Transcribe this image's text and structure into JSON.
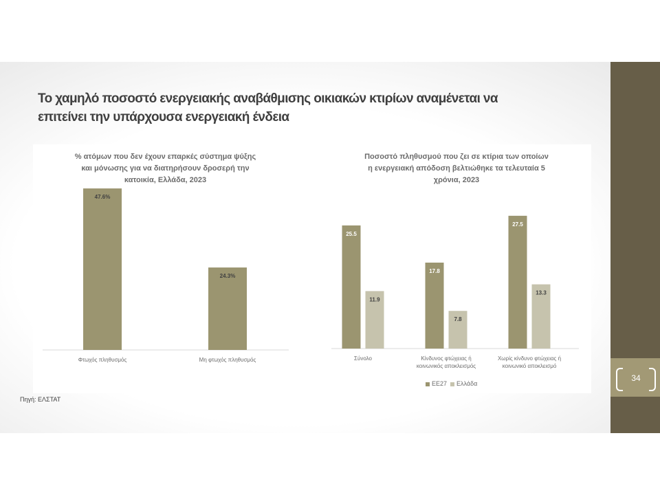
{
  "slide": {
    "title_line1": "Το χαμηλό ποσοστό ενεργειακής αναβάθμισης οικιακών κτιρίων αναμένεται να",
    "title_line2": "επιτείνει την υπάρχουσα ενεργειακή ένδεια",
    "source": "Πηγή: ΕΛΣΤΑΤ",
    "page_number": "34"
  },
  "colors": {
    "bar_main": "#9b9570",
    "bar_light": "#c6c3ad",
    "band": "#675e48",
    "page_box": "#a29975"
  },
  "chart_data": [
    {
      "type": "bar",
      "title_lines": [
        "% ατόμων που δεν έχουν επαρκές σύστημα ψύξης",
        "και μόνωσης για να διατηρήσουν δροσερή την",
        "κατοικία, Ελλάδα, 2023"
      ],
      "categories": [
        "Φτωχός πληθυσμός",
        "Μη φτωχός πληθυσμός"
      ],
      "values": [
        47.6,
        24.3
      ],
      "value_labels": [
        "47.6%",
        "24.3%"
      ],
      "ylim": [
        0,
        50
      ],
      "grid": false,
      "legend": "none"
    },
    {
      "type": "bar",
      "title_lines": [
        "Ποσοστό πληθυσμού που ζει σε κτίρια των οποίων",
        "η ενεργειακή απόδοση βελτιώθηκε τα τελευταία 5",
        "χρόνια, 2023"
      ],
      "categories": [
        [
          "Σύνολο"
        ],
        [
          "Κίνδυνος φτώχειας ή",
          "κοινωνικός αποκλεισμός"
        ],
        [
          "Χωρίς κίνδυνο φτώχειας ή",
          "κοινωνικό αποκλεισμό"
        ]
      ],
      "series": [
        {
          "name": "ΕΕ27",
          "values": [
            25.5,
            17.8,
            27.5
          ],
          "labels": [
            "25.5",
            "17.8",
            "27.5"
          ]
        },
        {
          "name": "Ελλάδα",
          "values": [
            11.9,
            7.8,
            13.3
          ],
          "labels": [
            "11.9",
            "7.8",
            "13.3"
          ]
        }
      ],
      "ylim": [
        0,
        30
      ],
      "grid": false,
      "legend": "bottom"
    }
  ]
}
